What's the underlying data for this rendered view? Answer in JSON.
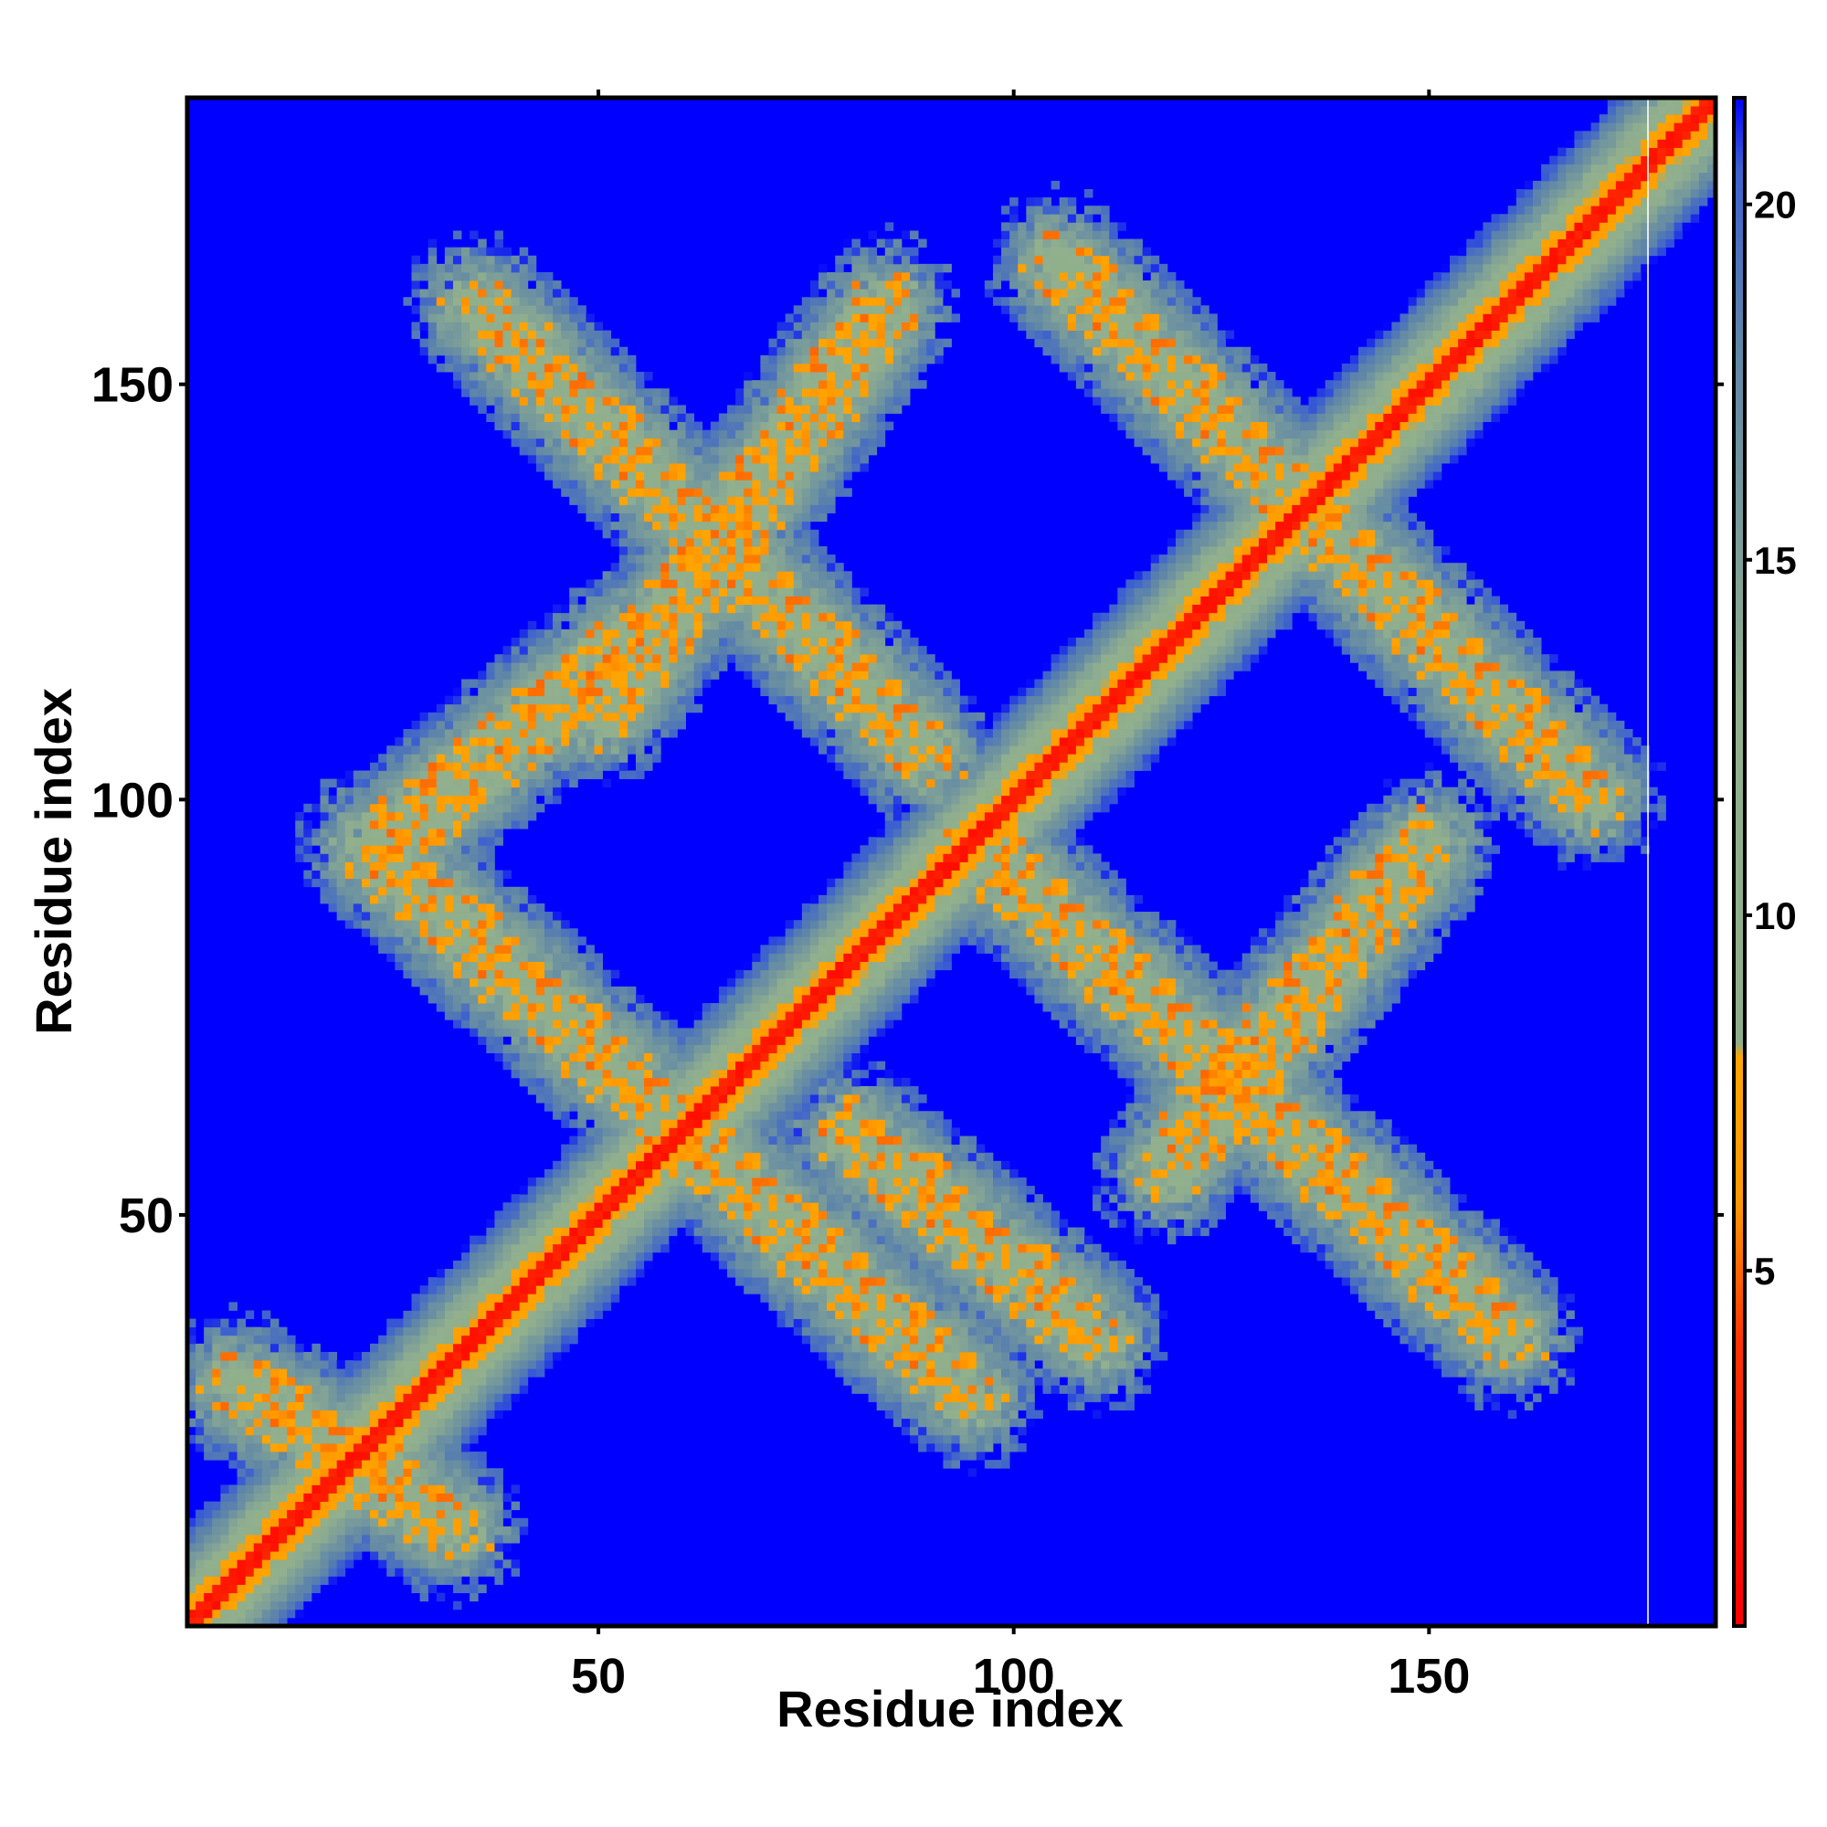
{
  "chart_data": {
    "type": "heatmap",
    "title": "",
    "xlabel": "Residue index",
    "ylabel": "Residue index",
    "xlim": [
      1,
      184
    ],
    "ylim": [
      1,
      184
    ],
    "x_ticks": [
      50,
      100,
      150
    ],
    "y_ticks": [
      50,
      100,
      150
    ],
    "x_tick_labels": [
      "50",
      "100",
      "150"
    ],
    "y_tick_labels": [
      "50",
      "100",
      "150"
    ],
    "colorbar": {
      "range": [
        0,
        21.5
      ],
      "ticks": [
        5,
        10,
        15,
        20
      ],
      "tick_labels": [
        "5",
        "10",
        "15",
        "20"
      ],
      "stops": [
        {
          "value": 0,
          "color": "#ff0000"
        },
        {
          "value": 4,
          "color": "#ff3300"
        },
        {
          "value": 6,
          "color": "#ff9900"
        },
        {
          "value": 8,
          "color": "#ffa500"
        },
        {
          "value": 8.2,
          "color": "#8fae8a"
        },
        {
          "value": 13,
          "color": "#92b08d"
        },
        {
          "value": 18,
          "color": "#5f86a8"
        },
        {
          "value": 20.5,
          "color": "#3c60d0"
        },
        {
          "value": 21.5,
          "color": "#0000ff"
        }
      ]
    },
    "background_color": "#0000ff",
    "cutoff_value": 21.5,
    "diagonal": {
      "start": 1,
      "end": 184
    },
    "contact_bands": [
      {
        "x_start": 35,
        "y_start": 160,
        "x_end": 90,
        "y_end": 105
      },
      {
        "x_start": 22,
        "y_start": 95,
        "x_end": 95,
        "y_end": 28
      },
      {
        "x_start": 105,
        "y_start": 165,
        "x_end": 170,
        "y_end": 100
      },
      {
        "x_start": 95,
        "y_start": 95,
        "x_end": 160,
        "y_end": 35
      },
      {
        "x_start": 85,
        "y_start": 160,
        "x_end": 50,
        "y_end": 110
      },
      {
        "x_start": 55,
        "y_start": 120,
        "x_end": 25,
        "y_end": 95
      },
      {
        "x_start": 150,
        "y_start": 95,
        "x_end": 118,
        "y_end": 55
      },
      {
        "x_start": 80,
        "y_start": 60,
        "x_end": 110,
        "y_end": 35
      },
      {
        "x_start": 6,
        "y_start": 30,
        "x_end": 33,
        "y_end": 12
      }
    ]
  }
}
